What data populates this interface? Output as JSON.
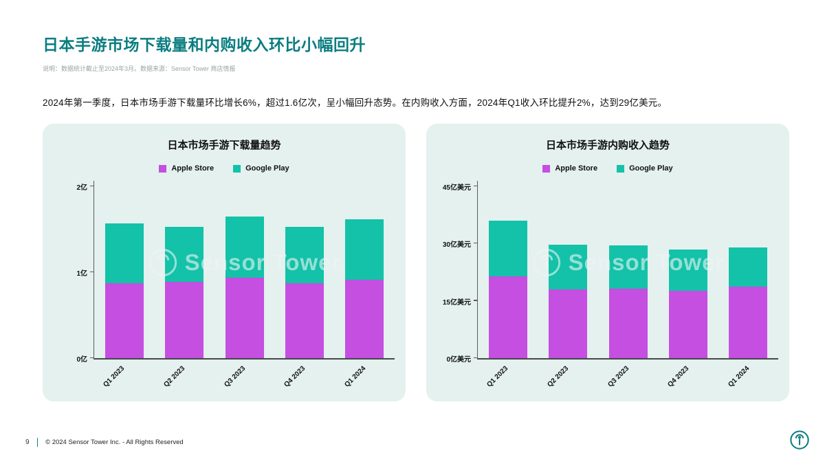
{
  "page": {
    "title": "日本手游市场下载量和内购收入环比小幅回升",
    "note": "说明：数据统计截止至2024年3月。数据来源：Sensor Tower 商店情报",
    "intro": "2024年第一季度，日本市场手游下载量环比增长6%，超过1.6亿次，呈小幅回升态势。在内购收入方面，2024年Q1收入环比提升2%，达到29亿美元。",
    "watermark": "Sensor Tower",
    "footer": {
      "page_number": "9",
      "copyright": "© 2024 Sensor Tower Inc. - All Rights Reserved"
    }
  },
  "colors": {
    "accent_teal": "#0A7D80",
    "apple": "#C44FE0",
    "google": "#13C2A8",
    "panel_bg": "#E4F1EF"
  },
  "chart_data": [
    {
      "type": "bar",
      "stacked": true,
      "title": "日本市场手游下载量趋势",
      "categories": [
        "Q1 2023",
        "Q2 2023",
        "Q3 2023",
        "Q4 2023",
        "Q1 2024"
      ],
      "series": [
        {
          "name": "Apple Store",
          "color_key": "apple",
          "values": [
            0.87,
            0.89,
            0.94,
            0.87,
            0.91
          ]
        },
        {
          "name": "Google Play",
          "color_key": "google",
          "values": [
            0.7,
            0.64,
            0.71,
            0.66,
            0.71
          ]
        }
      ],
      "totals": [
        1.57,
        1.53,
        1.65,
        1.53,
        1.62
      ],
      "unit": "亿次",
      "ymax": 2,
      "ylim": [
        0,
        2
      ],
      "yticks": [
        {
          "value": 0,
          "label": "0亿"
        },
        {
          "value": 1,
          "label": "1亿"
        },
        {
          "value": 2,
          "label": "2亿"
        }
      ],
      "legend_position": "top",
      "grid": false
    },
    {
      "type": "bar",
      "stacked": true,
      "title": "日本市场手游内购收入趋势",
      "categories": [
        "Q1 2023",
        "Q2 2023",
        "Q3 2023",
        "Q4 2023",
        "Q1 2024"
      ],
      "series": [
        {
          "name": "Apple Store",
          "color_key": "apple",
          "values": [
            21.5,
            18.0,
            18.2,
            17.6,
            18.8
          ]
        },
        {
          "name": "Google Play",
          "color_key": "google",
          "values": [
            14.5,
            11.7,
            11.4,
            10.8,
            10.2
          ]
        }
      ],
      "totals": [
        36.0,
        29.7,
        29.6,
        28.4,
        29.0
      ],
      "unit": "亿美元",
      "ymax": 45,
      "ylim": [
        0,
        45
      ],
      "yticks": [
        {
          "value": 0,
          "label": "0亿美元"
        },
        {
          "value": 15,
          "label": "15亿美元"
        },
        {
          "value": 30,
          "label": "30亿美元"
        },
        {
          "value": 45,
          "label": "45亿美元"
        }
      ],
      "legend_position": "top",
      "grid": false
    }
  ]
}
